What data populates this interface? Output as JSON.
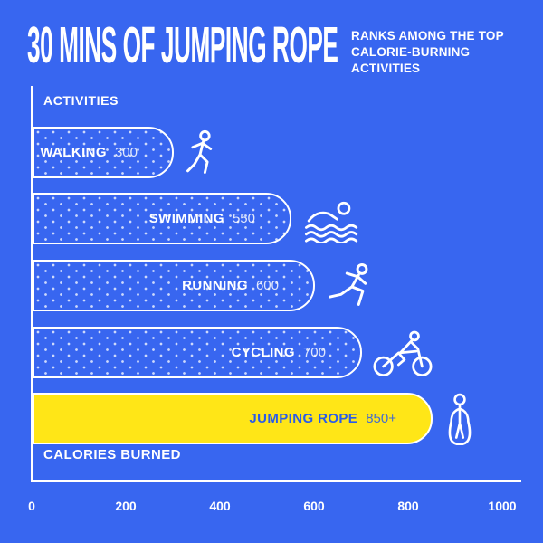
{
  "chart_data": {
    "type": "bar",
    "orientation": "horizontal",
    "title": "30 MINS OF JUMPING ROPE",
    "subtitle": "RANKS AMONG THE TOP CALORIE-BURNING ACTIVITIES",
    "categories": [
      "WALKING",
      "SWIMMING",
      "RUNNING",
      "CYCLING",
      "JUMPING ROPE"
    ],
    "values": [
      300,
      550,
      600,
      700,
      850
    ],
    "value_labels": [
      "300",
      "550",
      "600",
      "700",
      "850+"
    ],
    "xlabel": "CALORIES BURNED",
    "ylabel": "ACTIVITIES",
    "xlim": [
      0,
      1000
    ],
    "x_tick_labels": [
      "0",
      "200",
      "400",
      "600",
      "800",
      "1000"
    ],
    "grid": false,
    "legend": false,
    "highlight_category": "JUMPING ROPE",
    "bar_icons": [
      "walking-icon",
      "swimming-icon",
      "running-icon",
      "cycling-icon",
      "jump-rope-icon"
    ]
  },
  "colors": {
    "background": "#3866F0",
    "bar_outline": "#FFFFFF",
    "text": "#FFFFFF",
    "highlight_fill": "#FFE617",
    "highlight_text": "#2B5CE8"
  }
}
